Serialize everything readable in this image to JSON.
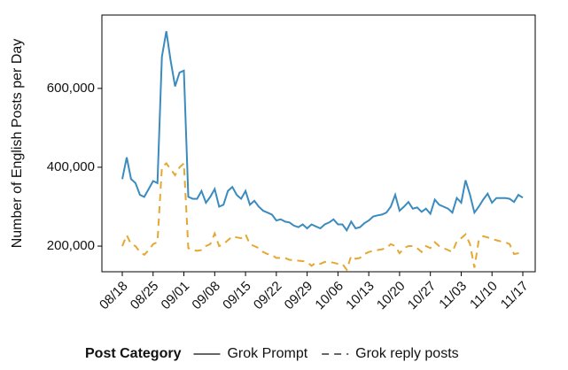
{
  "chart_data": {
    "type": "line",
    "ylabel": "Number of English Posts per Day",
    "legend_title": "Post Category",
    "legend_position": "bottom",
    "grid": false,
    "categories": [
      "08/18",
      null,
      null,
      null,
      null,
      null,
      null,
      "08/25",
      null,
      null,
      null,
      null,
      null,
      null,
      "09/01",
      null,
      null,
      null,
      null,
      null,
      null,
      "09/08",
      null,
      null,
      null,
      null,
      null,
      null,
      "09/15",
      null,
      null,
      null,
      null,
      null,
      null,
      "09/22",
      null,
      null,
      null,
      null,
      null,
      null,
      "09/29",
      null,
      null,
      null,
      null,
      null,
      null,
      "10/06",
      null,
      null,
      null,
      null,
      null,
      null,
      "10/13",
      null,
      null,
      null,
      null,
      null,
      null,
      "10/20",
      null,
      null,
      null,
      null,
      null,
      null,
      "10/27",
      null,
      null,
      null,
      null,
      null,
      null,
      "11/03",
      null,
      null,
      null,
      null,
      null,
      null,
      "11/10",
      null,
      null,
      null,
      null,
      null,
      null,
      "11/17"
    ],
    "ylim": [
      135000,
      786000
    ],
    "yticks": [
      {
        "value": 200000,
        "label": "200,000"
      },
      {
        "value": 400000,
        "label": "400,000"
      },
      {
        "value": 600000,
        "label": "600,000"
      }
    ],
    "series": [
      {
        "name": "Grok Prompt",
        "color": "#3b8bbf",
        "dash": "solid",
        "values": [
          370000,
          425000,
          370000,
          360000,
          330000,
          325000,
          345000,
          365000,
          360000,
          680000,
          745000,
          670000,
          605000,
          640000,
          645000,
          325000,
          320000,
          320000,
          340000,
          310000,
          325000,
          345000,
          300000,
          305000,
          340000,
          350000,
          330000,
          320000,
          340000,
          305000,
          315000,
          300000,
          290000,
          285000,
          280000,
          265000,
          268000,
          262000,
          260000,
          252000,
          248000,
          255000,
          245000,
          255000,
          250000,
          245000,
          255000,
          260000,
          268000,
          255000,
          255000,
          240000,
          262000,
          245000,
          248000,
          258000,
          265000,
          275000,
          278000,
          280000,
          285000,
          300000,
          330000,
          290000,
          300000,
          312000,
          295000,
          298000,
          287000,
          295000,
          282000,
          318000,
          305000,
          300000,
          295000,
          285000,
          322000,
          310000,
          367000,
          330000,
          285000,
          300000,
          318000,
          333000,
          310000,
          322000,
          322000,
          322000,
          320000,
          312000,
          330000,
          323000
        ]
      },
      {
        "name": "Grok reply posts",
        "color": "#e5a831",
        "dash": "dashed",
        "values": [
          200000,
          228000,
          205000,
          200000,
          185000,
          178000,
          190000,
          205000,
          210000,
          400000,
          410000,
          395000,
          380000,
          400000,
          410000,
          195000,
          190000,
          188000,
          190000,
          200000,
          205000,
          232000,
          200000,
          205000,
          215000,
          225000,
          222000,
          220000,
          230000,
          205000,
          200000,
          195000,
          185000,
          180000,
          178000,
          170000,
          170000,
          170000,
          165000,
          165000,
          163000,
          162000,
          160000,
          150000,
          158000,
          155000,
          160000,
          160000,
          158000,
          155000,
          155000,
          140000,
          175000,
          168000,
          170000,
          180000,
          185000,
          188000,
          190000,
          192000,
          195000,
          205000,
          200000,
          182000,
          195000,
          200000,
          200000,
          195000,
          185000,
          200000,
          195000,
          210000,
          200000,
          195000,
          190000,
          185000,
          212000,
          220000,
          230000,
          205000,
          145000,
          215000,
          225000,
          222000,
          218000,
          215000,
          212000,
          210000,
          205000,
          180000,
          182000,
          180000
        ]
      }
    ]
  }
}
